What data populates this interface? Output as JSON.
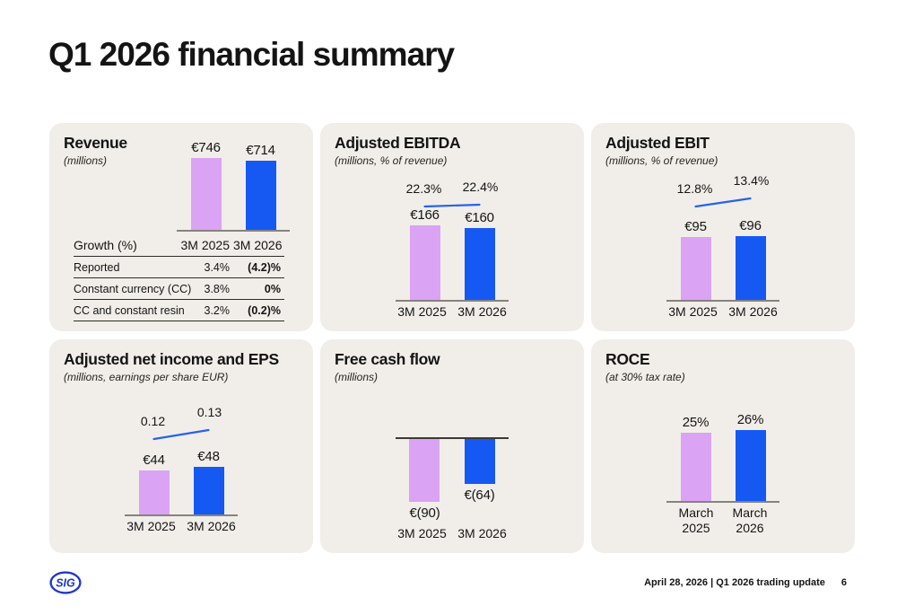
{
  "page": {
    "title": "Q1 2026 financial summary"
  },
  "footer": {
    "logo_text": "SIG",
    "date_line": "April 28, 2026 | Q1 2026 trading update",
    "page_number": "6"
  },
  "colors": {
    "page_bg": "#ffffff",
    "card_bg": "#f1eee9",
    "text": "#141414",
    "bar_2025_pink": "#dba3f4",
    "bar_2026_blue": "#1659f2",
    "trend_line_blue": "#2563eb",
    "axis_gray": "#86837d",
    "axis_dark": "#3c3a36",
    "logo_blue": "#2038c8"
  },
  "chart_data": [
    {
      "id": "revenue",
      "type": "bar",
      "title": "Revenue",
      "subtitle": "(millions)",
      "categories": [
        "3M 2025",
        "3M 2026"
      ],
      "values": [
        746,
        714
      ],
      "value_labels": [
        "€746",
        "€714"
      ],
      "ylim": [
        0,
        746
      ],
      "table": {
        "header": [
          "Growth (%)",
          "3M 2025",
          "3M 2026"
        ],
        "rows": [
          [
            "Reported",
            "3.4%",
            "(4.2)%"
          ],
          [
            "Constant currency (CC)",
            "3.8%",
            "0%"
          ],
          [
            "CC and constant resin",
            "3.2%",
            "(0.2)%"
          ]
        ]
      }
    },
    {
      "id": "ebitda",
      "type": "bar",
      "title": "Adjusted EBITDA",
      "subtitle": "(millions, % of revenue)",
      "categories": [
        "3M 2025",
        "3M 2026"
      ],
      "values": [
        166,
        160
      ],
      "value_labels": [
        "€166",
        "€160"
      ],
      "trend": {
        "labels": [
          "22.3%",
          "22.4%"
        ],
        "values": [
          22.3,
          22.4
        ]
      }
    },
    {
      "id": "ebit",
      "type": "bar",
      "title": "Adjusted EBIT",
      "subtitle": "(millions, % of revenue)",
      "categories": [
        "3M 2025",
        "3M 2026"
      ],
      "values": [
        95,
        96
      ],
      "value_labels": [
        "€95",
        "€96"
      ],
      "trend": {
        "labels": [
          "12.8%",
          "13.4%"
        ],
        "values": [
          12.8,
          13.4
        ]
      }
    },
    {
      "id": "netincome",
      "type": "bar",
      "title": "Adjusted net income and EPS",
      "subtitle": "(millions, earnings per share EUR)",
      "categories": [
        "3M 2025",
        "3M 2026"
      ],
      "values": [
        44,
        48
      ],
      "value_labels": [
        "€44",
        "€48"
      ],
      "trend": {
        "labels": [
          "0.12",
          "0.13"
        ],
        "values": [
          0.12,
          0.13
        ]
      }
    },
    {
      "id": "fcf",
      "type": "bar",
      "title": "Free cash flow",
      "subtitle": "(millions)",
      "categories": [
        "3M 2025",
        "3M 2026"
      ],
      "values": [
        -90,
        -64
      ],
      "value_labels": [
        "€(90)",
        "€(64)"
      ]
    },
    {
      "id": "roce",
      "type": "bar",
      "title": "ROCE",
      "subtitle": "(at 30% tax rate)",
      "categories": [
        "March 2025",
        "March 2026"
      ],
      "values": [
        25,
        26
      ],
      "value_labels": [
        "25%",
        "26%"
      ]
    }
  ]
}
